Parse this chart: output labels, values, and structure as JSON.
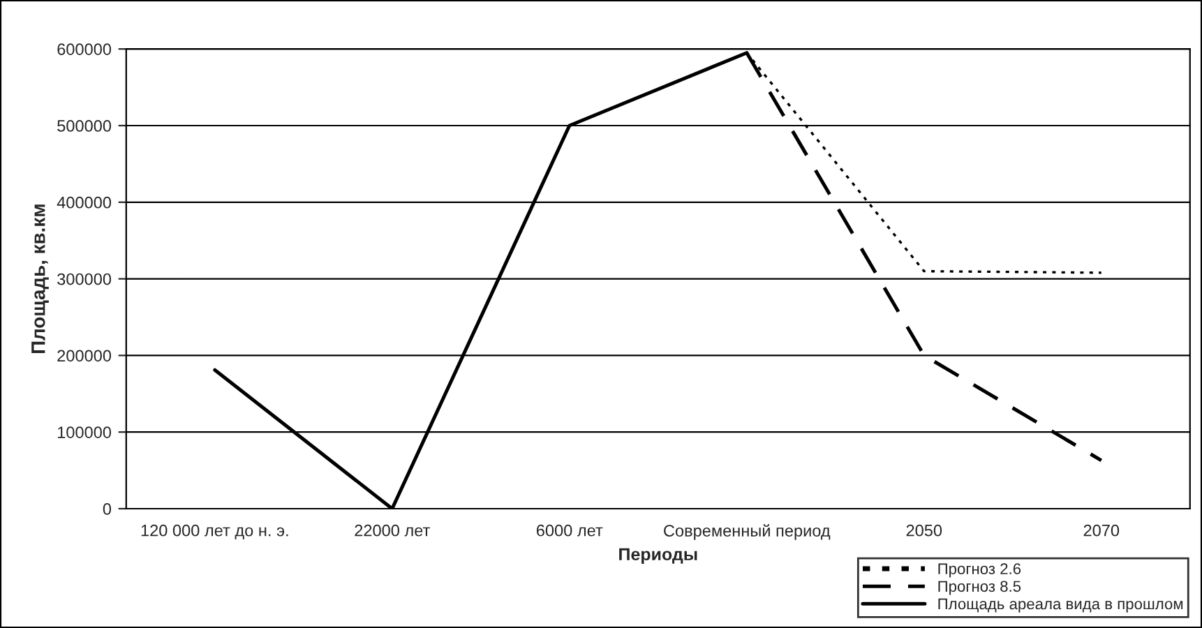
{
  "chart_data": {
    "type": "line",
    "xlabel": "Периоды",
    "ylabel": "Площадь, кв.км",
    "categories": [
      "120 000 лет до н. э.",
      "22000 лет",
      "6000 лет",
      "Современный период",
      "2050",
      "2070"
    ],
    "series": [
      {
        "name": "Прогноз 2.6",
        "color": "#000000",
        "line_style": "dotted",
        "values": [
          null,
          null,
          null,
          595000,
          310000,
          308000
        ]
      },
      {
        "name": "Прогноз 8.5",
        "color": "#000000",
        "line_style": "dashed",
        "values": [
          null,
          null,
          null,
          595000,
          200000,
          63000
        ]
      },
      {
        "name": "Площадь ареала вида в прошлом",
        "color": "#000000",
        "line_style": "solid",
        "values": [
          181000,
          0,
          500000,
          595000,
          null,
          null
        ]
      }
    ],
    "ylim": [
      0,
      600000
    ],
    "yticks": [
      0,
      100000,
      200000,
      300000,
      400000,
      500000,
      600000
    ],
    "grid": "y",
    "legend": "bottom right",
    "marker": "none"
  }
}
